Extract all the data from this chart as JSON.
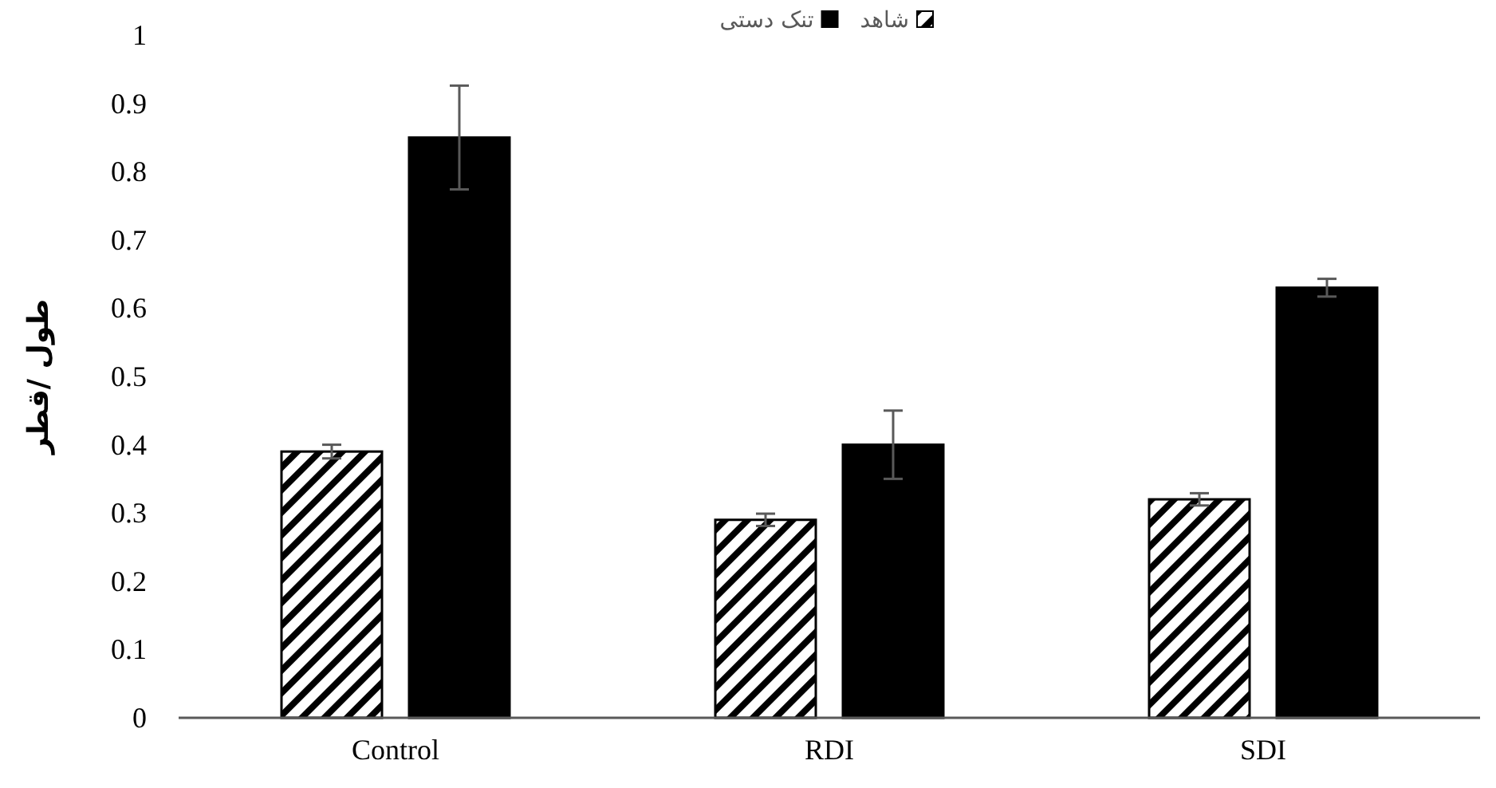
{
  "chart_data": {
    "type": "bar",
    "ylabel": "طول /قطر",
    "categories": [
      "Control",
      "RDI",
      "SDI"
    ],
    "series": [
      {
        "name": "شاهد",
        "color": "#000000",
        "values": [
          0.39,
          0.29,
          0.32
        ],
        "errors": [
          0.01,
          0.009,
          0.009
        ]
      },
      {
        "name": "تنک دستی",
        "color": "#000000",
        "values": [
          0.85,
          0.4,
          0.63
        ],
        "errors": [
          0.076,
          0.05,
          0.013
        ]
      }
    ],
    "ylim": [
      0,
      1
    ],
    "yticks": [
      0,
      0.1,
      0.2,
      0.3,
      0.4,
      0.5,
      0.6,
      0.7,
      0.8,
      0.9,
      1
    ],
    "grid": false,
    "legend": "top"
  }
}
